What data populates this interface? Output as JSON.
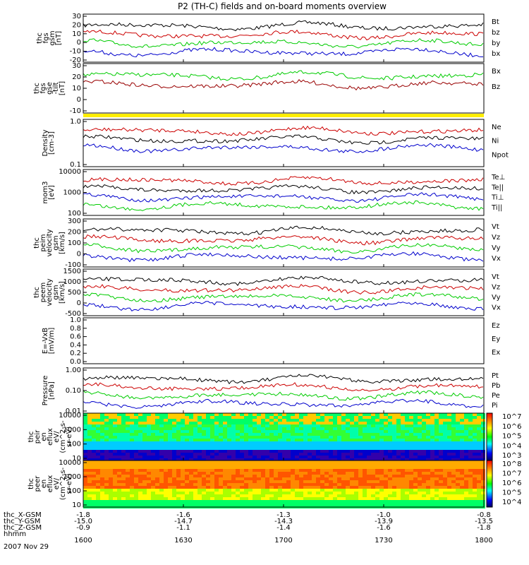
{
  "chart_data": {
    "type": "line",
    "title": "P2 (TH-C) fields and on-board moments overview",
    "date": "2007 Nov 29",
    "x_ticks": [
      "1600",
      "1630",
      "1700",
      "1730",
      "1800"
    ],
    "orbit_labels": [
      "thc_X-GSM",
      "thc_Y-GSM",
      "thc_Z-GSM",
      "hhmm"
    ],
    "orbit_rows": [
      [
        "-1.8",
        "-1.6",
        "-1.3",
        "-1.0",
        "-0.8"
      ],
      [
        "-15.0",
        "-14.7",
        "-14.3",
        "-13.9",
        "-13.5"
      ],
      [
        "-0.9",
        "-1.1",
        "-1.4",
        "-1.6",
        "-1.8"
      ]
    ],
    "panels": [
      {
        "ylabel": [
          "thc",
          "fgs",
          "gsm",
          "[nT]"
        ],
        "yticks": [
          "30",
          "20",
          "10",
          "0",
          "-10",
          "-20"
        ],
        "series": [
          {
            "name": "Bt",
            "color": "#000000"
          },
          {
            "name": "bz",
            "color": "#cc0000"
          },
          {
            "name": "by",
            "color": "#00cc00"
          },
          {
            "name": "bx",
            "color": "#0000cc"
          }
        ]
      },
      {
        "ylabel": [
          "thc",
          "fgs",
          "gse",
          "-tilt",
          "[nT]"
        ],
        "yticks": [
          "30",
          "20",
          "10",
          "0",
          "-10"
        ],
        "series": [
          {
            "name": "Bx",
            "color": "#00cc00"
          },
          {
            "name": "Bz",
            "color": "#990000"
          }
        ]
      },
      {
        "ylabel": [
          "Density",
          "[cm-3]"
        ],
        "yticks": [
          "1.0",
          "0.1"
        ],
        "series": [
          {
            "name": "Ne",
            "color": "#cc0000"
          },
          {
            "name": "Ni",
            "color": "#000000"
          },
          {
            "name": "Npot",
            "color": "#0000cc"
          }
        ]
      },
      {
        "ylabel": [
          "mom3",
          "[eV]"
        ],
        "yticks": [
          "10000",
          "1000",
          "100"
        ],
        "series": [
          {
            "name": "Te⊥",
            "color": "#cc0000"
          },
          {
            "name": "Te||",
            "color": "#000000"
          },
          {
            "name": "Ti⊥",
            "color": "#0000cc"
          },
          {
            "name": "Ti||",
            "color": "#00cc00"
          }
        ]
      },
      {
        "ylabel": [
          "thc",
          "peim",
          "velocity",
          "gsm",
          "[km/s]"
        ],
        "yticks": [
          "300",
          "200",
          "100",
          "0",
          "-100"
        ],
        "series": [
          {
            "name": "Vt",
            "color": "#000000"
          },
          {
            "name": "Vz",
            "color": "#cc0000"
          },
          {
            "name": "Vy",
            "color": "#00cc00"
          },
          {
            "name": "Vx",
            "color": "#0000cc"
          }
        ]
      },
      {
        "ylabel": [
          "thc",
          "peem",
          "velocity",
          "gsm",
          "[km/s]"
        ],
        "yticks": [
          "1500",
          "1000",
          "500",
          "0",
          "-500"
        ],
        "series": [
          {
            "name": "Vt",
            "color": "#000000"
          },
          {
            "name": "Vz",
            "color": "#cc0000"
          },
          {
            "name": "Vy",
            "color": "#00cc00"
          },
          {
            "name": "Vx",
            "color": "#0000cc"
          }
        ]
      },
      {
        "ylabel": [
          "E=-VxB",
          "[mV/m]"
        ],
        "yticks": [
          "1.0",
          "0.8",
          "0.6",
          "0.4",
          "0.2",
          "0.0"
        ],
        "series": [
          {
            "name": "Ez",
            "color": "#cc0000"
          },
          {
            "name": "Ey",
            "color": "#00cc00"
          },
          {
            "name": "Ex",
            "color": "#0000cc"
          }
        ]
      },
      {
        "ylabel": [
          "Pressure",
          "[nPa]"
        ],
        "yticks": [
          "1.00",
          "0.10",
          "0.01"
        ],
        "series": [
          {
            "name": "Pt",
            "color": "#000000"
          },
          {
            "name": "Pb",
            "color": "#cc0000"
          },
          {
            "name": "Pe",
            "color": "#00cc00"
          },
          {
            "name": "Pi",
            "color": "#0000cc"
          }
        ]
      },
      {
        "ylabel": [
          "thc",
          "peir",
          "en",
          "eflux",
          "eV/",
          "(cm^2-s-",
          "sr-eV)"
        ],
        "yticks": [
          "10000",
          "1000",
          "100",
          "10"
        ],
        "colorbar": [
          "10^7",
          "10^6",
          "10^5",
          "10^4",
          "10^3"
        ]
      },
      {
        "ylabel": [
          "thc",
          "peer",
          "en",
          "eflux",
          "eV/",
          "(cm^2-s-",
          "sr-eV)"
        ],
        "yticks": [
          "10000",
          "1000",
          "100",
          "10"
        ],
        "colorbar": [
          "10^8",
          "10^7",
          "10^6",
          "10^5",
          "10^4"
        ]
      }
    ]
  }
}
